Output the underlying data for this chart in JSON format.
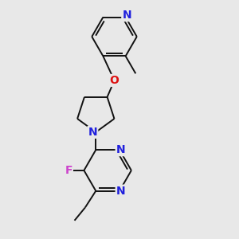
{
  "bg_color": "#e8e8e8",
  "bond_color": "#111111",
  "N_color": "#2020dd",
  "O_color": "#dd1111",
  "F_color": "#cc44cc",
  "bond_width": 1.4,
  "font_size": 10,
  "figsize": [
    3.0,
    3.0
  ],
  "dpi": 100,
  "xlim": [
    0,
    10
  ],
  "ylim": [
    0,
    10
  ]
}
